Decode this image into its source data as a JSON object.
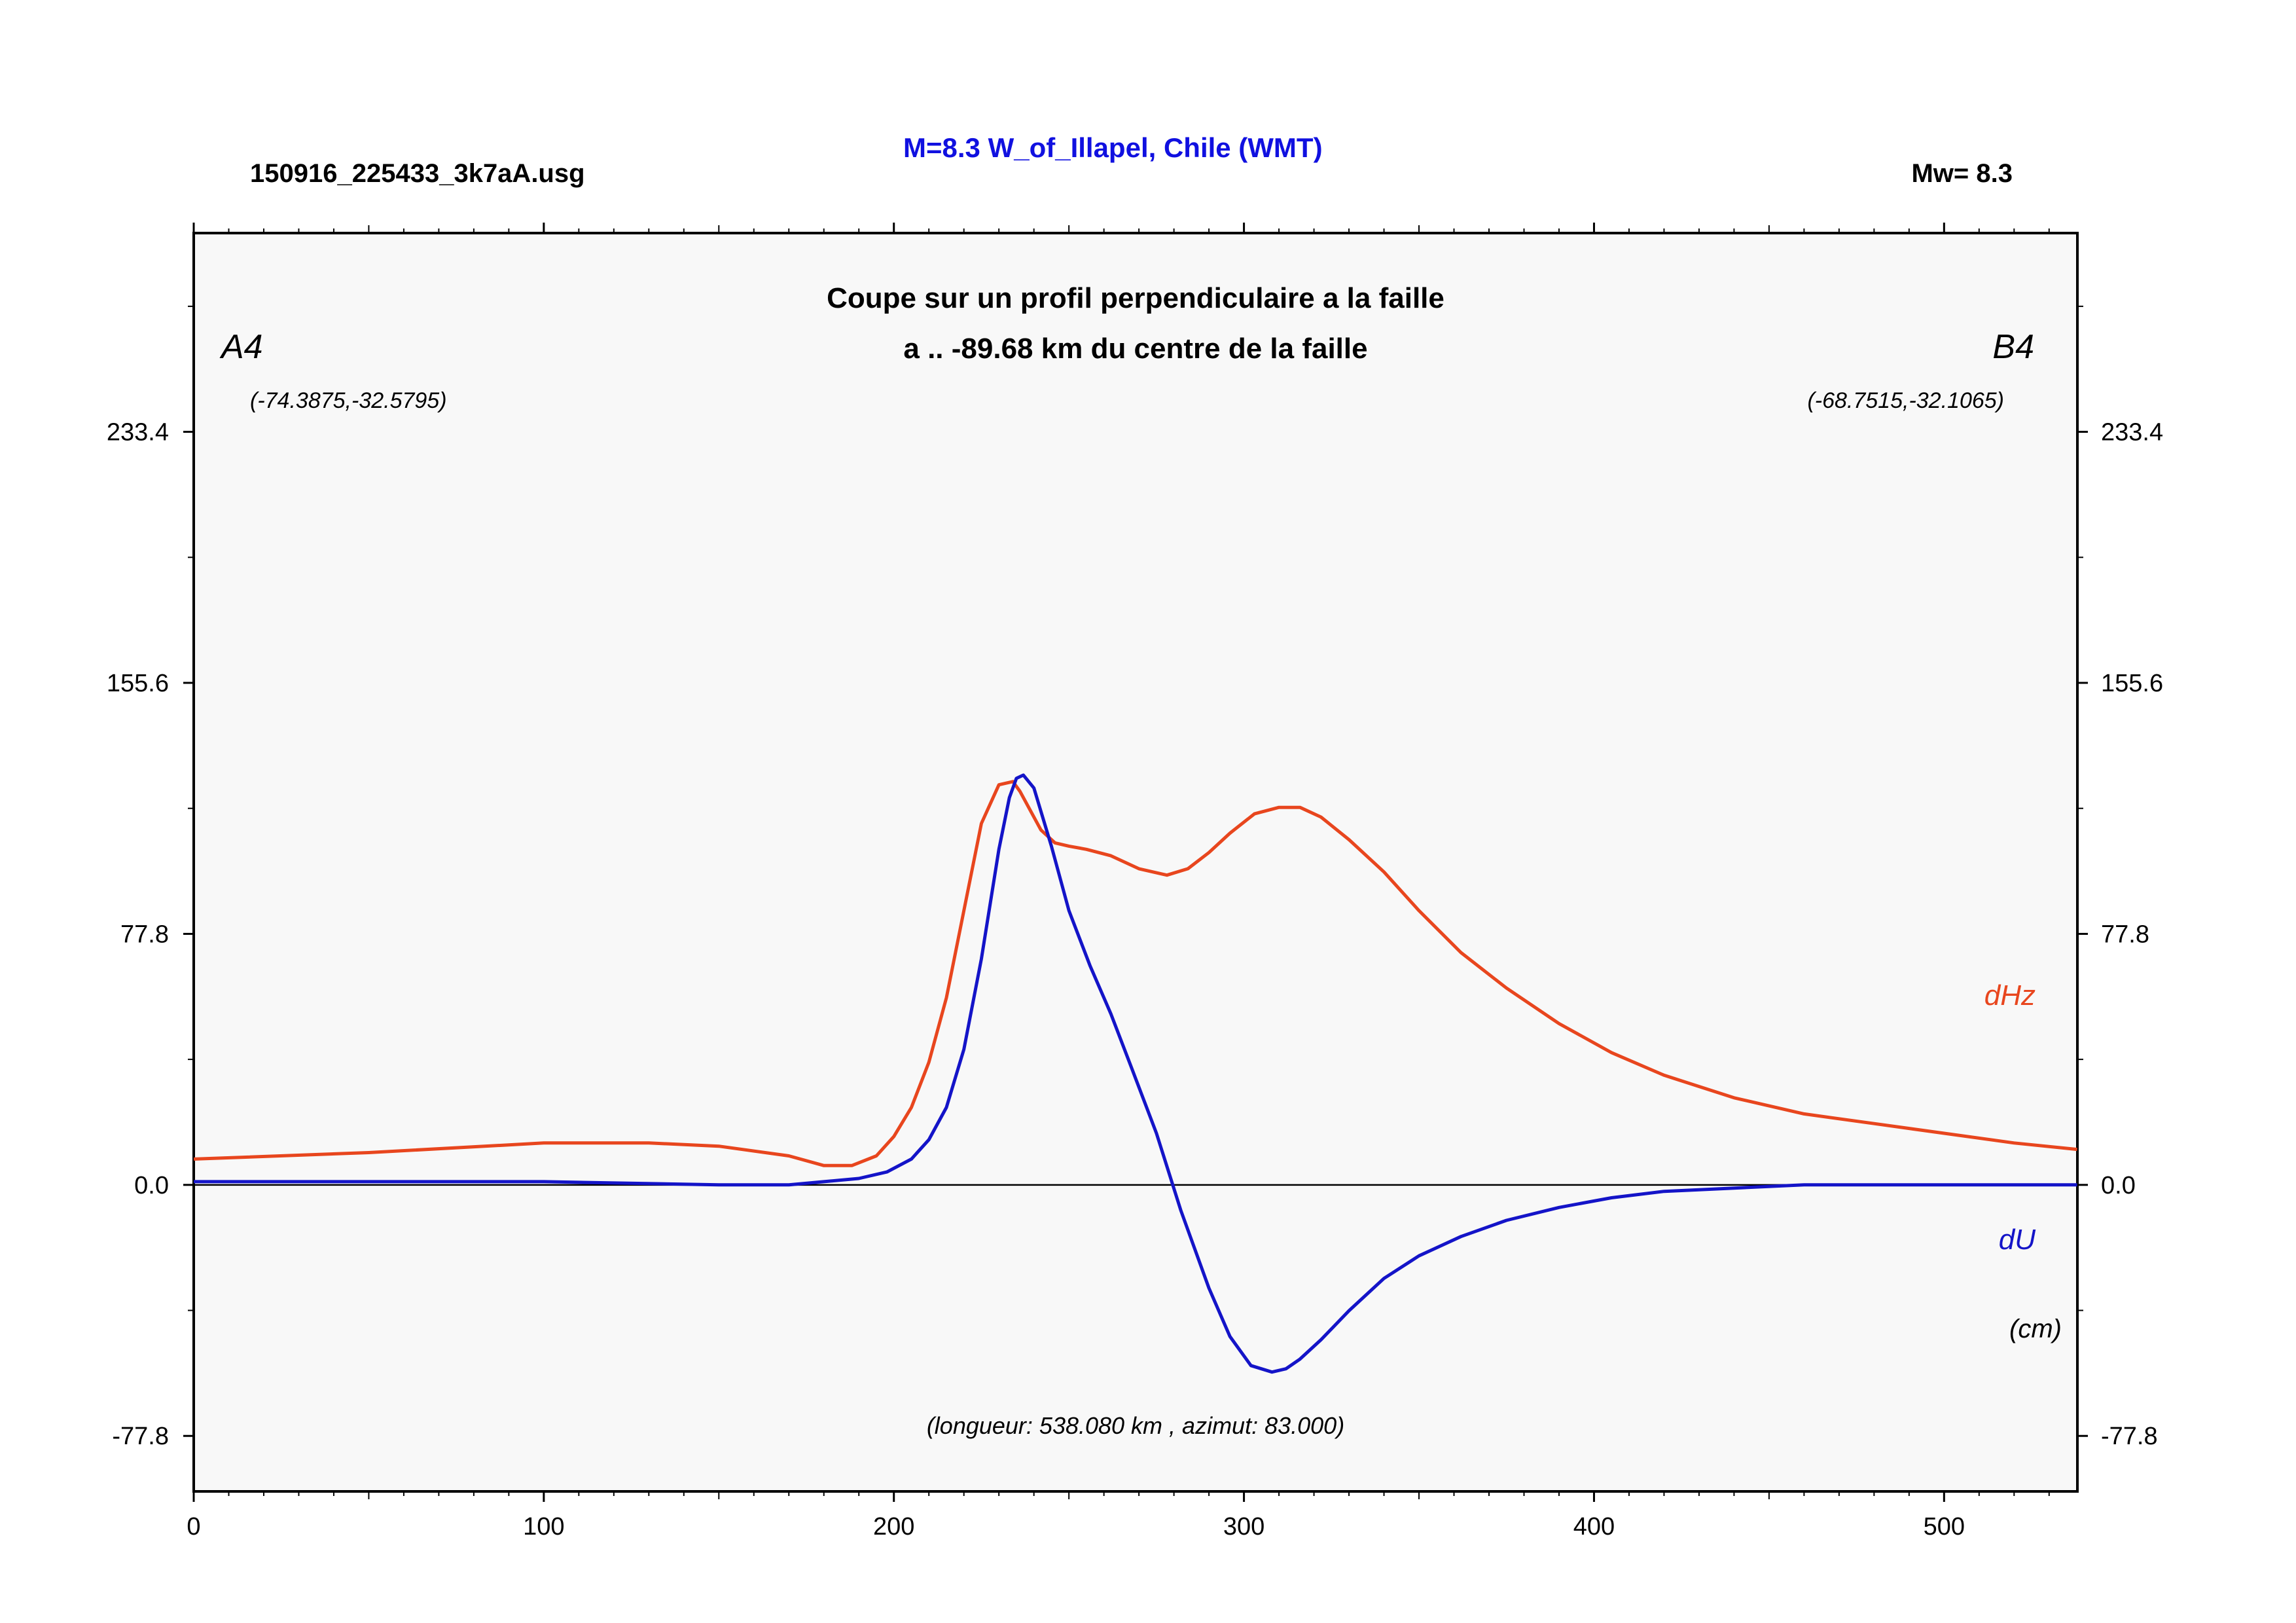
{
  "header": {
    "filename": "150916_225433_3k7aA.usg",
    "event_title": "M=8.3 W_of_Illapel, Chile (WMT)",
    "magnitude": "Mw= 8.3"
  },
  "colors": {
    "title_blue": "#1010e0",
    "dhz": "#e8461e",
    "du": "#1414c8",
    "plot_bg": "#f8f8f8",
    "axis": "#000000"
  },
  "chart_data": {
    "type": "line",
    "title": "Coupe sur un profil perpendiculaire a la faille",
    "subtitle": "a .. -89.68 km du centre de la faille",
    "endpoint_a": {
      "label": "A4",
      "coords": "(-74.3875,-32.5795)"
    },
    "endpoint_b": {
      "label": "B4",
      "coords": "(-68.7515,-32.1065)"
    },
    "unit_label": "(cm)",
    "footnote": "(longueur: 538.080 km , azimut: 83.000)",
    "xlim": [
      0,
      538.08
    ],
    "ylim": [
      -95,
      295
    ],
    "x_ticks": [
      0,
      100,
      200,
      300,
      400,
      500
    ],
    "x_tick_labels": [
      "0",
      "100",
      "200",
      "300",
      "400",
      "500"
    ],
    "y_ticks": [
      -77.8,
      0.0,
      77.8,
      155.6,
      233.4
    ],
    "y_tick_labels": [
      "-77.8",
      "0.0",
      "77.8",
      "155.6",
      "233.4"
    ],
    "grid": false,
    "series": [
      {
        "name": "dHz",
        "color": "#e8461e",
        "x": [
          0,
          50,
          100,
          130,
          150,
          170,
          180,
          188,
          195,
          200,
          205,
          210,
          215,
          220,
          225,
          230,
          234,
          236,
          239,
          242,
          246,
          250,
          255,
          262,
          270,
          278,
          284,
          290,
          296,
          303,
          310,
          316,
          322,
          330,
          340,
          350,
          362,
          375,
          390,
          405,
          420,
          440,
          460,
          480,
          500,
          520,
          538
        ],
        "y": [
          8,
          10,
          13,
          13,
          12,
          9,
          6,
          6,
          9,
          15,
          24,
          38,
          58,
          85,
          112,
          124,
          125,
          122,
          116,
          110,
          106,
          105,
          104,
          102,
          98,
          96,
          98,
          103,
          109,
          115,
          117,
          117,
          114,
          107,
          97,
          85,
          72,
          61,
          50,
          41,
          34,
          27,
          22,
          19,
          16,
          13,
          11
        ]
      },
      {
        "name": "dU",
        "color": "#1414c8",
        "x": [
          0,
          100,
          150,
          170,
          180,
          190,
          198,
          205,
          210,
          215,
          220,
          225,
          230,
          233,
          235,
          237,
          240,
          245,
          250,
          256,
          262,
          268,
          275,
          282,
          290,
          296,
          302,
          308,
          312,
          316,
          322,
          330,
          340,
          350,
          362,
          375,
          390,
          405,
          420,
          440,
          460,
          480,
          500,
          520,
          538
        ],
        "y": [
          1,
          1,
          0,
          0,
          1,
          2,
          4,
          8,
          14,
          24,
          42,
          70,
          104,
          120,
          126,
          127,
          123,
          105,
          85,
          68,
          53,
          36,
          16,
          -8,
          -32,
          -47,
          -56,
          -58,
          -57,
          -54,
          -48,
          -39,
          -29,
          -22,
          -16,
          -11,
          -7,
          -4,
          -2,
          -1,
          0,
          0,
          0,
          0,
          0
        ]
      }
    ]
  }
}
